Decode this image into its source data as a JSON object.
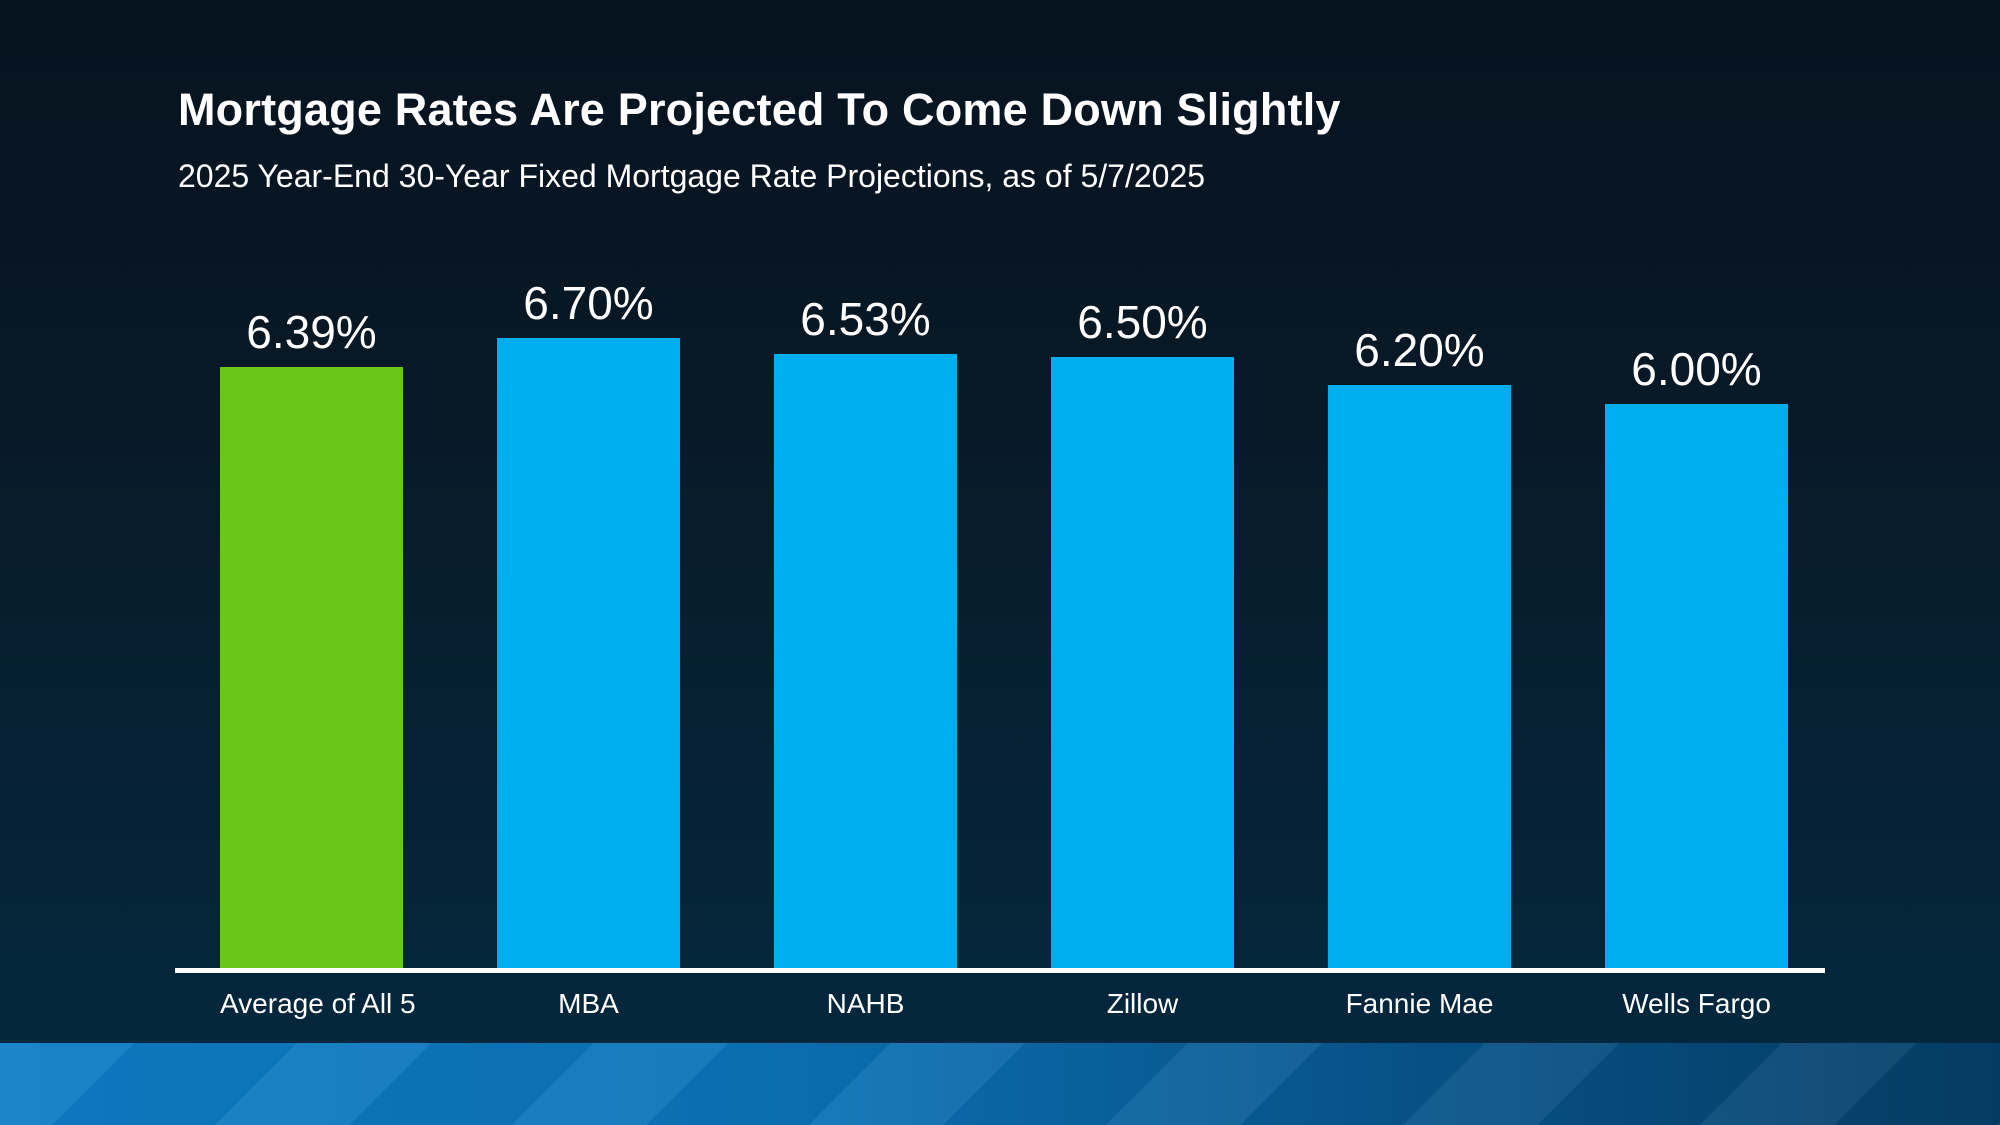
{
  "header": {
    "title": "Mortgage Rates Are Projected To Come Down Slightly",
    "subtitle": "2025 Year-End 30-Year Fixed Mortgage Rate Projections, as of 5/7/2025"
  },
  "chart_data": {
    "type": "bar",
    "title": "2025 Year-End 30-Year Fixed Mortgage Rate Projections, as of 5/7/2025",
    "categories": [
      "Average of All 5",
      "MBA",
      "NAHB",
      "Zillow",
      "Fannie Mae",
      "Wells Fargo"
    ],
    "values": [
      6.39,
      6.7,
      6.53,
      6.5,
      6.2,
      6.0
    ],
    "value_labels": [
      "6.39%",
      "6.70%",
      "6.53%",
      "6.50%",
      "6.20%",
      "6.00%"
    ],
    "bar_colors": [
      "#68C717",
      "#00AEEF",
      "#00AEEF",
      "#00AEEF",
      "#00AEEF",
      "#00AEEF"
    ],
    "xlabel": "",
    "ylabel": "",
    "ylim": [
      0,
      6.7
    ],
    "grid": false,
    "legend": false,
    "highlight_category": "Average of All 5"
  },
  "colors": {
    "background_top": "#061420",
    "background_bottom": "#032940",
    "bar_blue": "#00AEEF",
    "bar_green": "#68C717",
    "axis_line": "#FFFFFF",
    "text": "#FFFFFF",
    "footer_gradient_left": "#0D7DC6",
    "footer_gradient_right": "#053E66"
  }
}
